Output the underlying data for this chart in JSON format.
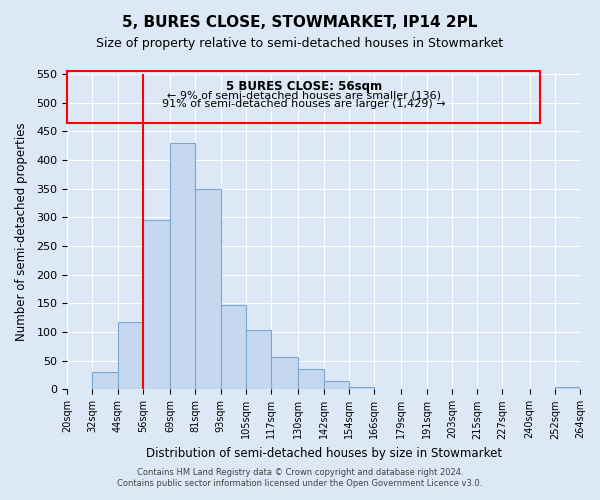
{
  "title": "5, BURES CLOSE, STOWMARKET, IP14 2PL",
  "subtitle": "Size of property relative to semi-detached houses in Stowmarket",
  "xlabel": "Distribution of semi-detached houses by size in Stowmarket",
  "ylabel": "Number of semi-detached properties",
  "bin_labels": [
    "20sqm",
    "32sqm",
    "44sqm",
    "56sqm",
    "69sqm",
    "81sqm",
    "93sqm",
    "105sqm",
    "117sqm",
    "130sqm",
    "142sqm",
    "154sqm",
    "166sqm",
    "179sqm",
    "191sqm",
    "203sqm",
    "215sqm",
    "227sqm",
    "240sqm",
    "252sqm",
    "264sqm"
  ],
  "bin_edges": [
    20,
    32,
    44,
    56,
    69,
    81,
    93,
    105,
    117,
    130,
    142,
    154,
    166,
    179,
    191,
    203,
    215,
    227,
    240,
    252,
    264
  ],
  "bar_values": [
    0,
    30,
    117,
    295,
    430,
    350,
    147,
    104,
    57,
    35,
    15,
    5,
    0,
    0,
    0,
    0,
    0,
    0,
    0,
    5
  ],
  "bar_color": "#c5d8ef",
  "bar_edge_color": "#7ba7d0",
  "property_line_x": 56,
  "property_sqm": 56,
  "pct_smaller": 9,
  "pct_larger": 91,
  "count_smaller": 136,
  "count_larger": 1429,
  "annotation_text_line1": "5 BURES CLOSE: 56sqm",
  "annotation_text_line2": "← 9% of semi-detached houses are smaller (136)",
  "annotation_text_line3": "91% of semi-detached houses are larger (1,429) →",
  "ylim": [
    0,
    550
  ],
  "yticks": [
    0,
    50,
    100,
    150,
    200,
    250,
    300,
    350,
    400,
    450,
    500,
    550
  ],
  "footer_line1": "Contains HM Land Registry data © Crown copyright and database right 2024.",
  "footer_line2": "Contains public sector information licensed under the Open Government Licence v3.0.",
  "bg_color": "#dce8f5",
  "plot_bg_color": "#dce8f5",
  "grid_color": "#ffffff",
  "title_fontsize": 11,
  "subtitle_fontsize": 9
}
